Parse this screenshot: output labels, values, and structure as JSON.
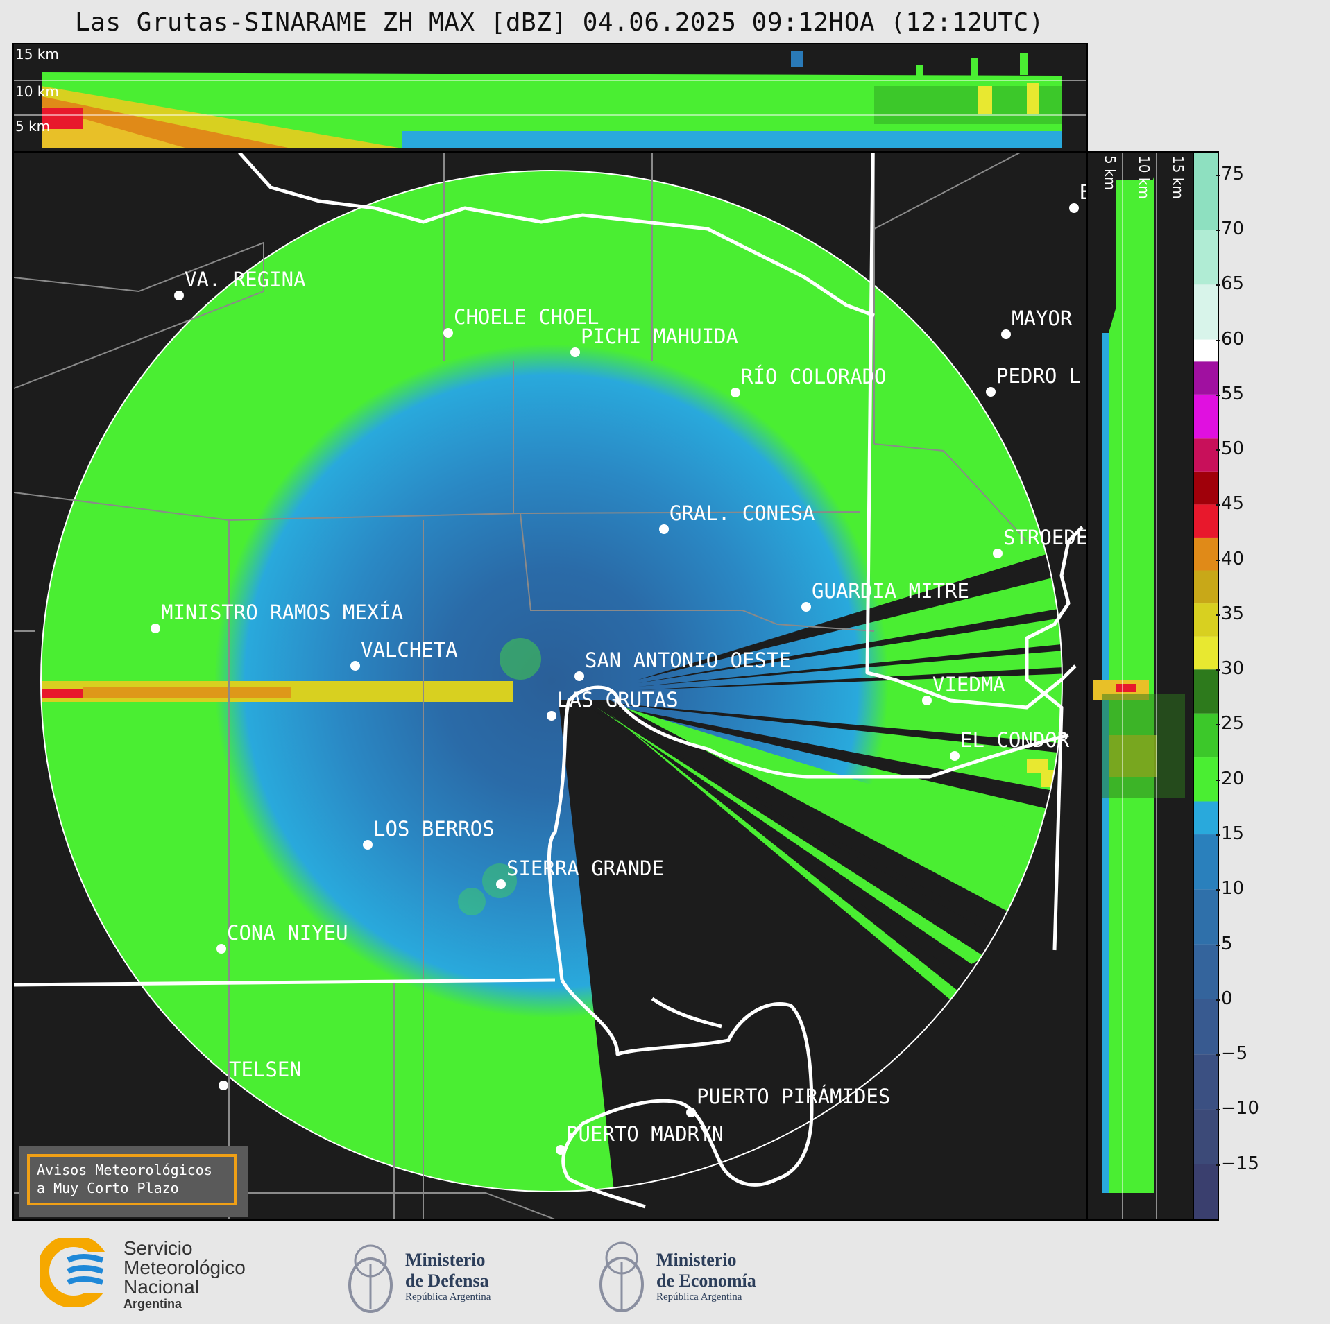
{
  "title": "Las Grutas-SINARAME ZH MAX [dBZ] 04.06.2025 09:12HOA (12:12UTC)",
  "top_panel": {
    "altitude_labels": [
      "15 km",
      "10 km",
      "5 km"
    ]
  },
  "side_panel": {
    "altitude_labels": [
      "5 km",
      "10 km",
      "15 km"
    ]
  },
  "cities": [
    {
      "name": "PICHI MAHUIDA"
    },
    {
      "name": "RÍO COLORADO"
    },
    {
      "name": "VA. REGINA"
    },
    {
      "name": "CHOELE CHOEL"
    },
    {
      "name": "MAYOR"
    },
    {
      "name": "PEDRO L"
    },
    {
      "name": "GRAL. CONESA"
    },
    {
      "name": "STROEDE"
    },
    {
      "name": "GUARDIA MITRE"
    },
    {
      "name": "MINISTRO RAMOS MEXÍA"
    },
    {
      "name": "VALCHETA"
    },
    {
      "name": "SAN ANTONIO OESTE"
    },
    {
      "name": "VIEDMA"
    },
    {
      "name": "LAS GRUTAS"
    },
    {
      "name": "EL CONDOR"
    },
    {
      "name": "LOS BERROS"
    },
    {
      "name": "SIERRA GRANDE"
    },
    {
      "name": "CONA NIYEU"
    },
    {
      "name": "TELSEN"
    },
    {
      "name": "PUERTO PIRÁMIDES"
    },
    {
      "name": "PUERTO MADRYN"
    },
    {
      "name": "B"
    }
  ],
  "avisos": {
    "line1": "Avisos Meteorológicos",
    "line2": "a Muy Corto Plazo"
  },
  "colorbar": {
    "ticks": [
      "75",
      "70",
      "65",
      "60",
      "55",
      "50",
      "45",
      "40",
      "35",
      "30",
      "25",
      "20",
      "15",
      "10",
      "5",
      "0",
      "−5",
      "−10",
      "−15"
    ],
    "range": [
      -20,
      77
    ],
    "colors": {
      "low": "#3a3f6e",
      "cyan": "#29a9dc",
      "green": "#4aee32",
      "dark_green": "#2d7a1c",
      "yellow": "#e8e830",
      "orange": "#e08a18",
      "red": "#e8182c",
      "dark_red": "#a0000a",
      "magenta": "#e010e0",
      "white": "#ffffff",
      "mint": "#8ee0c0"
    }
  },
  "logos": {
    "smn": {
      "line1": "Servicio",
      "line2": "Meteorológico",
      "line3": "Nacional",
      "line4": "Argentina"
    },
    "defensa": {
      "line1": "Ministerio",
      "line2": "de Defensa",
      "line3": "República Argentina"
    },
    "economia": {
      "line1": "Ministerio",
      "line2": "de Economía",
      "line3": "República Argentina"
    }
  }
}
